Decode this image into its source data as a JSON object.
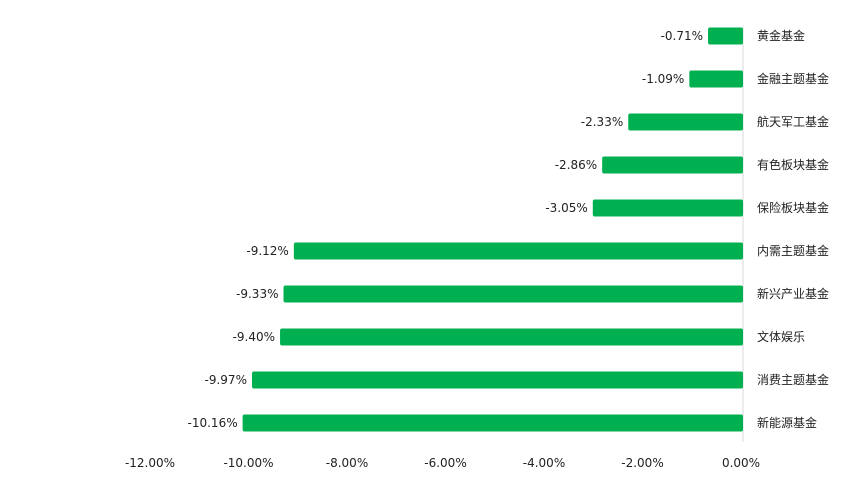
{
  "chart_data": {
    "type": "bar",
    "orientation": "horizontal",
    "categories": [
      "黄金基金",
      "金融主题基金",
      "航天军工基金",
      "有色板块基金",
      "保险板块基金",
      "内需主题基金",
      "新兴产业基金",
      "文体娱乐",
      "消费主题基金",
      "新能源基金"
    ],
    "values": [
      -0.71,
      -1.09,
      -2.33,
      -2.86,
      -3.05,
      -9.12,
      -9.33,
      -9.4,
      -9.97,
      -10.16
    ],
    "value_labels": [
      "-0.71%",
      "-1.09%",
      "-2.33%",
      "-2.86%",
      "-3.05%",
      "-9.12%",
      "-9.33%",
      "-9.40%",
      "-9.97%",
      "-10.16%"
    ],
    "x_ticks": [
      -12,
      -10,
      -8,
      -6,
      -4,
      -2,
      0
    ],
    "x_tick_labels": [
      "-12.00%",
      "-10.00%",
      "-8.00%",
      "-6.00%",
      "-4.00%",
      "-2.00%",
      "0.00%"
    ],
    "xlim": [
      -12,
      0
    ],
    "grid": false,
    "legend": "none",
    "bar_color": "#00b050",
    "axis_color": "#d9d9d9"
  }
}
